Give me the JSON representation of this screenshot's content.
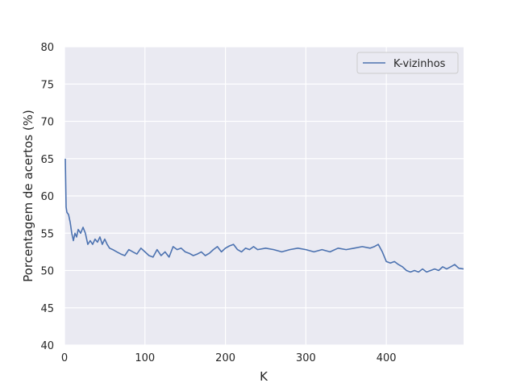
{
  "chart_data": {
    "type": "line",
    "title": "",
    "xlabel": "K",
    "ylabel": "Porcentagem de acertos (%)",
    "xlim": [
      0,
      496
    ],
    "ylim": [
      40,
      80
    ],
    "xticks": [
      0,
      100,
      200,
      300,
      400
    ],
    "yticks": [
      40,
      45,
      50,
      55,
      60,
      65,
      70,
      75,
      80
    ],
    "grid": true,
    "legend_position": "top-right",
    "colors": {
      "background": "#EAEAF2",
      "grid": "#FFFFFF",
      "line": "#4C72B0"
    },
    "series": [
      {
        "name": "K-vizinhos",
        "x": [
          1,
          2,
          3,
          5,
          7,
          9,
          11,
          13,
          15,
          17,
          20,
          23,
          26,
          29,
          32,
          35,
          38,
          41,
          44,
          47,
          50,
          53,
          56,
          60,
          65,
          70,
          75,
          80,
          85,
          90,
          95,
          100,
          105,
          110,
          115,
          120,
          125,
          130,
          135,
          140,
          145,
          150,
          155,
          160,
          165,
          170,
          175,
          180,
          185,
          190,
          195,
          200,
          205,
          210,
          215,
          220,
          225,
          230,
          235,
          240,
          250,
          260,
          270,
          280,
          290,
          300,
          310,
          320,
          330,
          340,
          350,
          360,
          370,
          380,
          385,
          390,
          395,
          400,
          405,
          410,
          415,
          420,
          425,
          430,
          435,
          440,
          445,
          450,
          455,
          460,
          465,
          470,
          475,
          480,
          485,
          490,
          496
        ],
        "y": [
          65.0,
          58.5,
          57.8,
          57.5,
          56.5,
          55.0,
          54.0,
          55.0,
          54.5,
          55.5,
          55.0,
          55.8,
          55.0,
          53.5,
          54.0,
          53.5,
          54.2,
          53.8,
          54.5,
          53.5,
          54.2,
          53.5,
          53.0,
          52.8,
          52.5,
          52.2,
          52.0,
          52.8,
          52.5,
          52.2,
          53.0,
          52.5,
          52.0,
          51.8,
          52.8,
          52.0,
          52.5,
          51.8,
          53.2,
          52.8,
          53.0,
          52.5,
          52.3,
          52.0,
          52.2,
          52.5,
          52.0,
          52.3,
          52.8,
          53.2,
          52.5,
          53.0,
          53.3,
          53.5,
          52.8,
          52.5,
          53.0,
          52.8,
          53.2,
          52.8,
          53.0,
          52.8,
          52.5,
          52.8,
          53.0,
          52.8,
          52.5,
          52.8,
          52.5,
          53.0,
          52.8,
          53.0,
          53.2,
          53.0,
          53.2,
          53.5,
          52.5,
          51.2,
          51.0,
          51.2,
          50.8,
          50.5,
          50.0,
          49.8,
          50.0,
          49.8,
          50.2,
          49.8,
          50.0,
          50.2,
          50.0,
          50.5,
          50.2,
          50.5,
          50.8,
          50.3,
          50.2
        ]
      }
    ]
  }
}
